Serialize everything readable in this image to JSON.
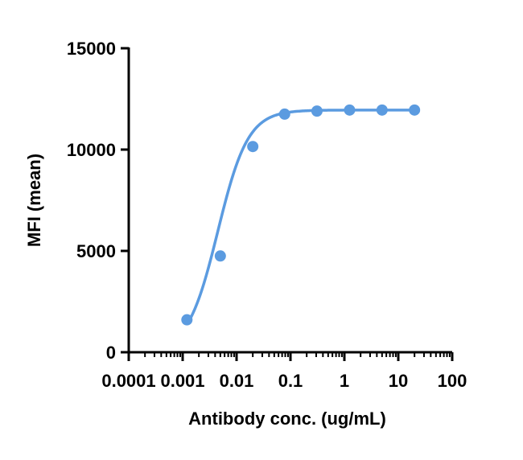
{
  "chart_data": {
    "type": "scatter",
    "title": "",
    "xlabel": "Antibody conc. (ug/mL)",
    "ylabel": "MFI (mean)",
    "xscale": "log",
    "xlim": [
      0.0001,
      100
    ],
    "ylim": [
      0,
      15000
    ],
    "x_tick_labels": [
      "0.0001",
      "0.001",
      "0.01",
      "0.1",
      "1",
      "10",
      "100"
    ],
    "y_tick_labels": [
      "0",
      "5000",
      "10000",
      "15000"
    ],
    "grid": false,
    "color": "#5b9be0",
    "series": [
      {
        "x": [
          0.0012,
          0.005,
          0.02,
          0.078,
          0.31,
          1.25,
          5,
          20
        ],
        "y": [
          1600,
          4750,
          10150,
          11750,
          11900,
          11950,
          11950,
          11950
        ]
      }
    ],
    "fit": "sigmoidal 4PL curve through points"
  }
}
